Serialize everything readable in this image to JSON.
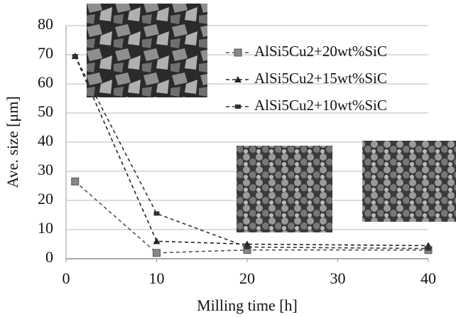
{
  "chart_data": {
    "type": "line",
    "x_label": "Milling time [h]",
    "y_label": "Ave. size [μm]",
    "x": [
      1,
      10,
      20,
      40
    ],
    "series": [
      {
        "name": "AlSi5Cu2+20wt%SiC",
        "color": "#555555",
        "marker": "square",
        "values": [
          26.5,
          2,
          3,
          3
        ]
      },
      {
        "name": "AlSi5Cu2+15wt%SiC",
        "color": "#222222",
        "marker": "triangle",
        "values": [
          69.5,
          6,
          5,
          4.5
        ]
      },
      {
        "name": "AlSi5Cu2+10wt%SiC",
        "color": "#333333",
        "marker": "dash",
        "values": [
          69.5,
          15.5,
          4,
          3.5
        ]
      }
    ],
    "xlim": [
      0,
      40
    ],
    "xticks": [
      0,
      10,
      20,
      30,
      40
    ],
    "ylim": [
      0,
      80
    ],
    "yticks": [
      0,
      10,
      20,
      30,
      40,
      50,
      60,
      70,
      80
    ],
    "grid": true,
    "legend": "upper-right"
  }
}
